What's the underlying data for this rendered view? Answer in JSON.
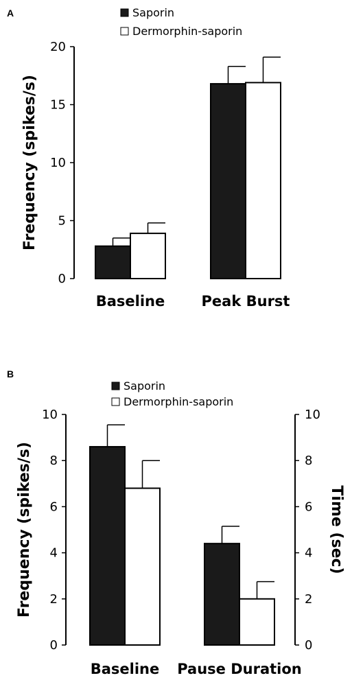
{
  "colors": {
    "saporin": "#1a1a1a",
    "dermorphin_saporin": "#ffffff",
    "outline": "#000000"
  },
  "chart_data": [
    {
      "panel": "A",
      "type": "bar",
      "title": "",
      "ylabel": "Frequency (spikes/s)",
      "xlabel": "",
      "ylim": [
        0,
        20
      ],
      "yticks": [
        0,
        5,
        10,
        15,
        20
      ],
      "categories": [
        "Baseline",
        "Peak Burst"
      ],
      "legend_position": "top-center",
      "grid": false,
      "series": [
        {
          "name": "Saporin",
          "values": [
            2.8,
            16.8
          ],
          "errors": [
            0.7,
            1.5
          ]
        },
        {
          "name": "Dermorphin-saporin",
          "values": [
            3.9,
            16.9
          ],
          "errors": [
            0.9,
            2.2
          ]
        }
      ]
    },
    {
      "panel": "B",
      "type": "bar",
      "title": "",
      "ylabel": "Frequency (spikes/s)",
      "y2label": "Time (sec)",
      "xlabel": "",
      "ylim": [
        0,
        10
      ],
      "yticks": [
        0,
        2,
        4,
        6,
        8,
        10
      ],
      "y2lim": [
        0,
        10
      ],
      "y2ticks": [
        0,
        2,
        4,
        6,
        8,
        10
      ],
      "categories": [
        "Baseline",
        "Pause Duration"
      ],
      "legend_position": "top-center",
      "grid": false,
      "series": [
        {
          "name": "Saporin",
          "values": [
            8.6,
            4.4
          ],
          "errors": [
            0.95,
            0.75
          ]
        },
        {
          "name": "Dermorphin-saporin",
          "values": [
            6.8,
            2.0
          ],
          "errors": [
            1.2,
            0.75
          ]
        }
      ]
    }
  ]
}
